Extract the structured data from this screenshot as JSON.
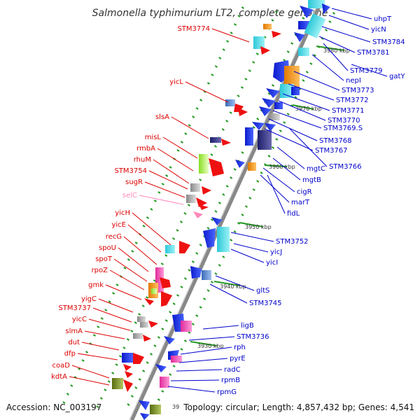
{
  "title": "Salmonella typhimurium LT2, complete genome",
  "footer": {
    "accession": "Accession: NC_003197",
    "topology": "Topology: circular; Length: 4,857,432 bp; Genes: 4,541",
    "partial_scale": "39"
  },
  "scale_marks": [
    "3980 kbp",
    "3970 kbp",
    "3960 kbp",
    "3950 kbp",
    "3940 kbp",
    "3930 kbp"
  ],
  "genes_left": [
    "STM3774",
    "yicL",
    "slsA",
    "misL",
    "rmbA",
    "rhuM",
    "STM3754",
    "sugR",
    "selC",
    "yicH",
    "yicE",
    "recG",
    "spoU",
    "spoT",
    "rpoZ",
    "gmk",
    "yigC",
    "STM3737",
    "yicC",
    "slmA",
    "dut",
    "dfp",
    "coaD",
    "kdtA"
  ],
  "genes_right": [
    "uhpT",
    "yicN",
    "STM3784",
    "STM3781",
    "gatY",
    "STM3779",
    "nepI",
    "STM3773",
    "STM3772",
    "STM3771",
    "STM3770",
    "STM3769.S",
    "STM3768",
    "STM3767",
    "STM3766",
    "mgtC",
    "mgtB",
    "cigR",
    "marT",
    "fidL",
    "STM3752",
    "yicJ",
    "yicI",
    "gltS",
    "STM3745",
    "ligB",
    "STM3736",
    "rph",
    "pyrE",
    "radC",
    "rpmB",
    "rpmG"
  ],
  "colors": {
    "backbone": "#888888",
    "left_label": "#dd0000",
    "right_label": "#0000cc",
    "trna_label": "#ff88bb",
    "tick": "#229922"
  }
}
